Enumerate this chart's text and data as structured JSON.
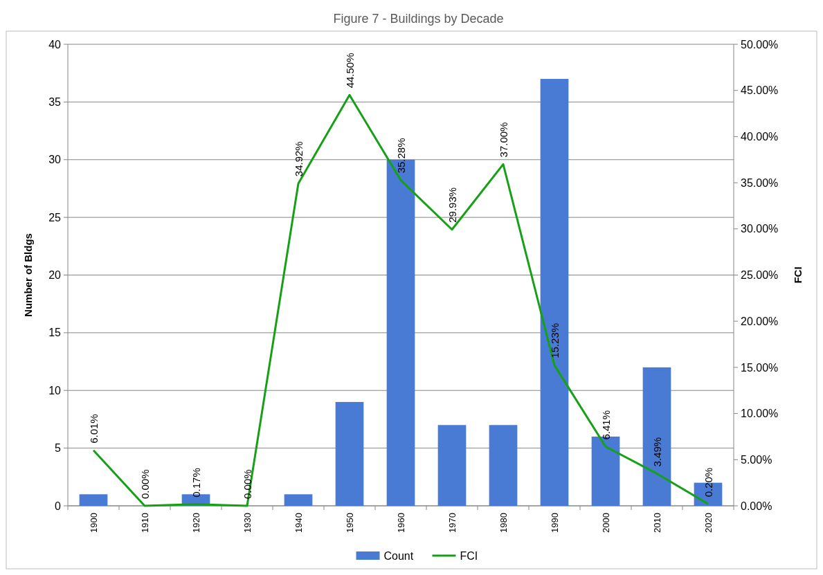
{
  "chart_data": {
    "type": "bar",
    "title": "Figure 7 - Buildings by Decade",
    "ylabel": "Number of Bldgs",
    "y2label": "FCI",
    "categories": [
      "1900",
      "1910",
      "1920",
      "1930",
      "1940",
      "1950",
      "1960",
      "1970",
      "1980",
      "1990",
      "2000",
      "2010",
      "2020"
    ],
    "series": [
      {
        "name": "Count",
        "color": "#4a7bd4",
        "values": [
          1,
          0,
          1,
          0,
          1,
          9,
          30,
          7,
          7,
          37,
          6,
          12,
          2
        ]
      },
      {
        "name": "FCI",
        "type": "line",
        "axis": "y2",
        "color": "#16a016",
        "values": [
          6.01,
          0,
          0.17,
          0,
          34.92,
          44.5,
          35.28,
          29.93,
          37.0,
          15.23,
          6.41,
          3.49,
          0.2
        ],
        "value_labels": [
          "6.01%",
          "0.00%",
          "0.17%",
          "0.00%",
          "34.92%",
          "44.50%",
          "35.28%",
          "29.93%",
          "37.00%",
          "15.23%",
          "6.41%",
          "3.49%",
          "0.20%"
        ]
      }
    ],
    "ylim": [
      0,
      40
    ],
    "yticks": [
      0,
      5,
      10,
      15,
      20,
      25,
      30,
      35,
      40
    ],
    "y2lim": [
      0,
      50
    ],
    "y2ticks": [
      {
        "value": 0,
        "label": "0.00%"
      },
      {
        "value": 5,
        "label": "5.00%"
      },
      {
        "value": 10,
        "label": "10.00%"
      },
      {
        "value": 15,
        "label": "15.00%"
      },
      {
        "value": 20,
        "label": "20.00%"
      },
      {
        "value": 25,
        "label": "25.00%"
      },
      {
        "value": 30,
        "label": "30.00%"
      },
      {
        "value": 35,
        "label": "35.00%"
      },
      {
        "value": 40,
        "label": "40.00%"
      },
      {
        "value": 45,
        "label": "45.00%"
      },
      {
        "value": 50,
        "label": "50.00%"
      }
    ],
    "grid": "y",
    "legend": "bottom",
    "marker": "none",
    "line_style": "solid"
  }
}
